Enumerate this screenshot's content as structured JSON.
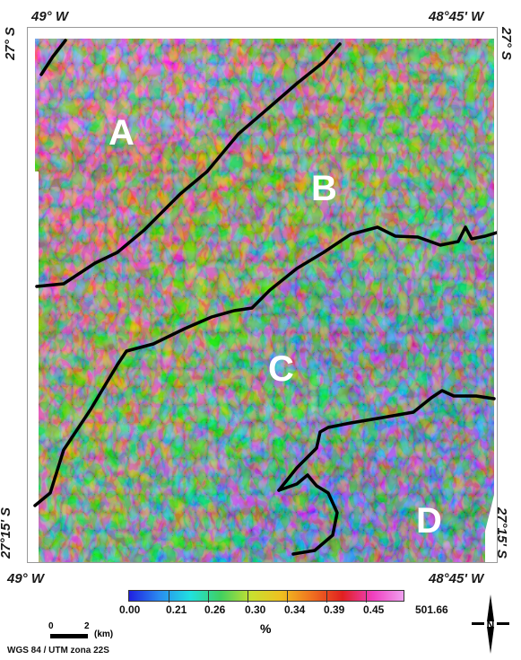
{
  "map": {
    "coords": {
      "top_left": "49° W",
      "top_right": "48°45' W",
      "bottom_left": "49° W",
      "bottom_right": "48°45' W",
      "left_top": "27° S",
      "right_top": "27° S",
      "left_bottom": "27°15' S",
      "right_bottom": "27°15' S"
    },
    "zones": [
      "A",
      "B",
      "C",
      "D"
    ]
  },
  "legend": {
    "ticks": [
      "0.00",
      "0.21",
      "0.26",
      "0.30",
      "0.34",
      "0.39",
      "0.45",
      "501.66"
    ],
    "unit": "%",
    "colors": [
      "#2020e0",
      "#2a8cf0",
      "#20e0e0",
      "#40d060",
      "#c8e030",
      "#f0c020",
      "#f07020",
      "#e02020",
      "#f040c0",
      "#f0a0f0"
    ]
  },
  "scale_bar": {
    "start": "0",
    "end": "2",
    "unit": "(km)"
  },
  "crs": "WGS 84 / UTM zona 22S",
  "north_arrow": {
    "label": "N"
  }
}
